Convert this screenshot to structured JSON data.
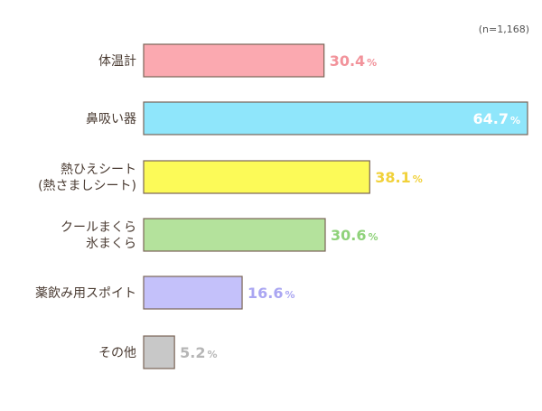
{
  "note": "(n=1,168)",
  "chart_data": {
    "type": "bar",
    "orientation": "horizontal",
    "title": "",
    "xlabel": "",
    "ylabel": "",
    "xlim": [
      0,
      64.7
    ],
    "grid": false,
    "unit": "%",
    "categories": [
      [
        "体温計"
      ],
      [
        "鼻吸い器"
      ],
      [
        "熱ひえシート",
        "(熱さましシート)"
      ],
      [
        "クールまくら",
        "氷まくら"
      ],
      [
        "薬飲み用スポイト"
      ],
      [
        "その他"
      ]
    ],
    "values": [
      30.4,
      64.7,
      38.1,
      30.6,
      16.6,
      5.2
    ],
    "value_labels": [
      "30.4",
      "64.7",
      "38.1",
      "30.6",
      "16.6",
      "5.2"
    ],
    "bar_colors": [
      "#fba9b0",
      "#8fe6fb",
      "#fcfa58",
      "#b4e29c",
      "#c4c1fa",
      "#c8c8c8"
    ],
    "label_colors": [
      "#f2939b",
      "#ffffff",
      "#f1d13a",
      "#8fd27a",
      "#aaa6f2",
      "#b6b6b6"
    ]
  }
}
